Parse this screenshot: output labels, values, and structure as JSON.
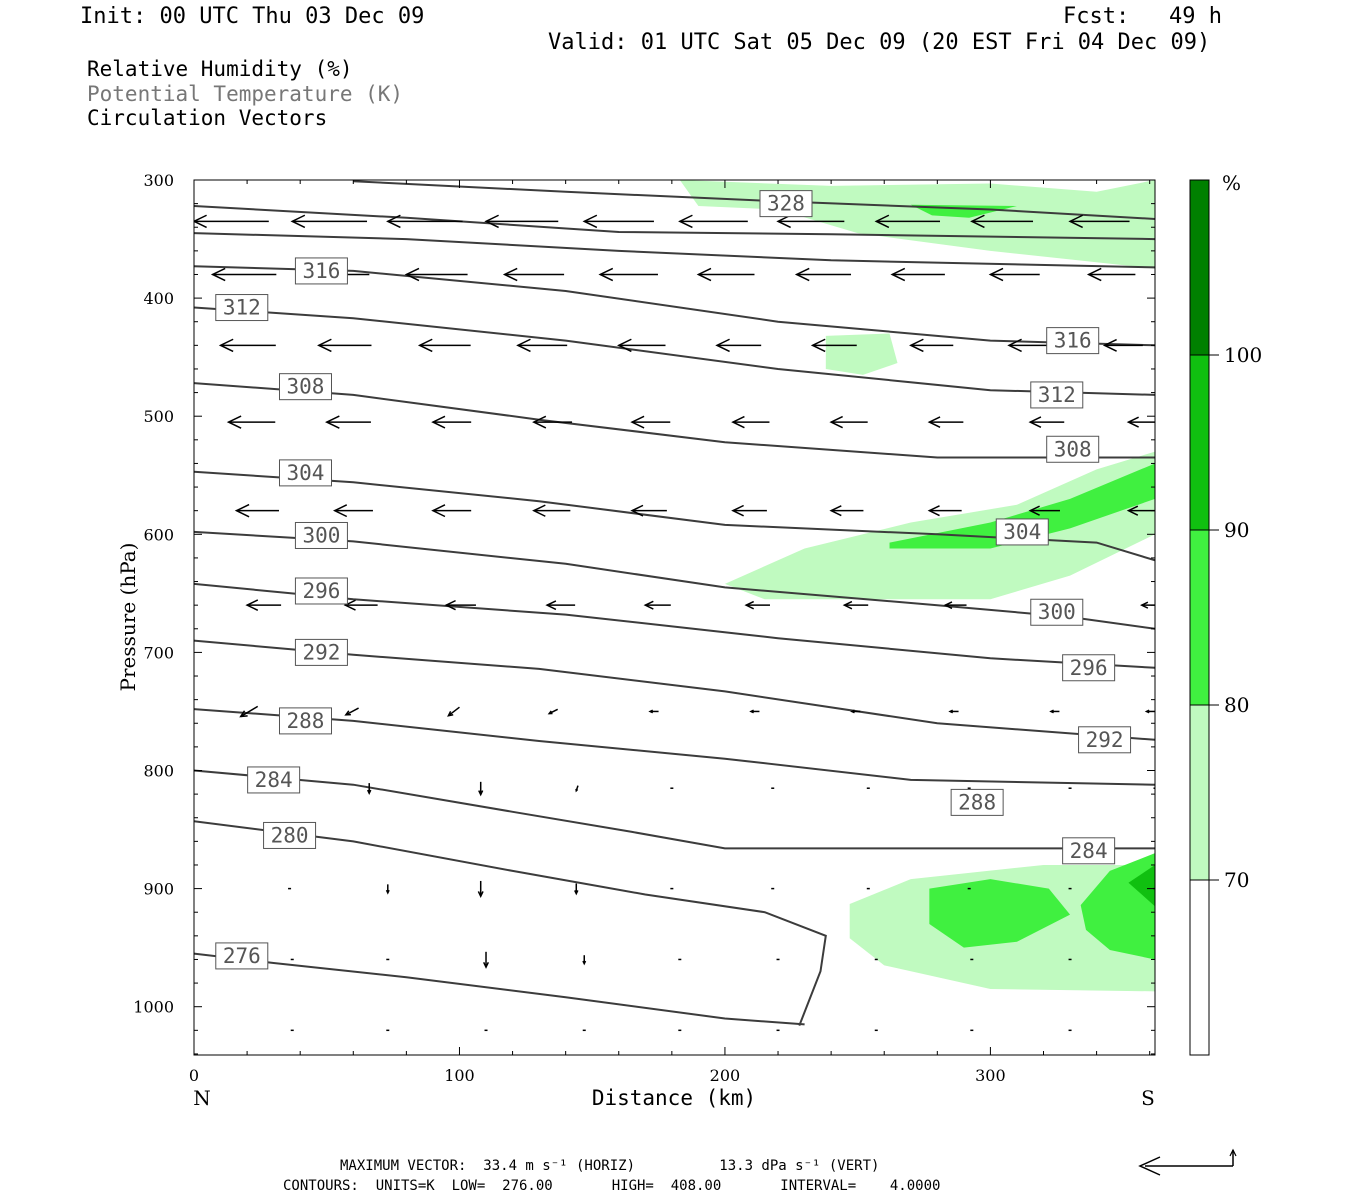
{
  "header": {
    "init": "Init: 00 UTC Thu 03 Dec 09",
    "fcst": "Fcst:   49 h",
    "valid": "Valid: 01 UTC Sat 05 Dec 09 (20 EST Fri 04 Dec 09)",
    "legend_rh": "Relative Humidity (%)",
    "legend_theta": "Potential Temperature (K)",
    "legend_vec": "Circulation Vectors"
  },
  "footer": {
    "max_vector": "MAXIMUM VECTOR:  33.4 m s⁻¹ (HORIZ)          13.3 dPa s⁻¹ (VERT)",
    "contours": "CONTOURS:  UNITS=K  LOW=  276.00       HIGH=  408.00       INTERVAL=    4.0000"
  },
  "colorbar": {
    "unit": "%",
    "levels": [
      70,
      80,
      90,
      100
    ],
    "colors": [
      "#ffffff",
      "#c0fac0",
      "#40f040",
      "#10c010",
      "#008000"
    ]
  },
  "chart_data": {
    "type": "cross-section",
    "xlabel": "Distance (km)",
    "ylabel": "Pressure (hPa)",
    "x_left_label": "N",
    "x_right_label": "S",
    "xlim": [
      0,
      362
    ],
    "ylim": [
      1040,
      300
    ],
    "x_ticks": [
      0,
      100,
      200,
      300
    ],
    "y_ticks": [
      300,
      400,
      500,
      600,
      700,
      800,
      900,
      1000
    ],
    "theta_contours": [
      {
        "level": 276,
        "points": [
          [
            0,
            955
          ],
          [
            30,
            963
          ],
          [
            80,
            975
          ],
          [
            140,
            992
          ],
          [
            200,
            1010
          ],
          [
            230,
            1015
          ]
        ]
      },
      {
        "level": 280,
        "points": [
          [
            0,
            843
          ],
          [
            60,
            860
          ],
          [
            120,
            885
          ],
          [
            170,
            905
          ],
          [
            215,
            920
          ],
          [
            238,
            940
          ],
          [
            236,
            970
          ],
          [
            228,
            1016
          ]
        ]
      },
      {
        "level": 284,
        "points": [
          [
            0,
            800
          ],
          [
            60,
            812
          ],
          [
            120,
            835
          ],
          [
            165,
            852
          ],
          [
            200,
            866
          ],
          [
            260,
            866
          ],
          [
            362,
            866
          ]
        ]
      },
      {
        "level": 288,
        "points": [
          [
            0,
            748
          ],
          [
            60,
            758
          ],
          [
            130,
            775
          ],
          [
            200,
            790
          ],
          [
            270,
            808
          ],
          [
            362,
            812
          ]
        ]
      },
      {
        "level": 292,
        "points": [
          [
            0,
            690
          ],
          [
            60,
            702
          ],
          [
            130,
            714
          ],
          [
            200,
            733
          ],
          [
            280,
            760
          ],
          [
            362,
            774
          ]
        ]
      },
      {
        "level": 296,
        "points": [
          [
            0,
            642
          ],
          [
            60,
            655
          ],
          [
            140,
            668
          ],
          [
            220,
            688
          ],
          [
            300,
            705
          ],
          [
            362,
            713
          ]
        ]
      },
      {
        "level": 300,
        "points": [
          [
            0,
            598
          ],
          [
            60,
            606
          ],
          [
            140,
            625
          ],
          [
            200,
            645
          ],
          [
            280,
            660
          ],
          [
            330,
            670
          ],
          [
            362,
            680
          ]
        ]
      },
      {
        "level": 304,
        "points": [
          [
            0,
            547
          ],
          [
            60,
            556
          ],
          [
            130,
            572
          ],
          [
            200,
            592
          ],
          [
            280,
            600
          ],
          [
            340,
            607
          ],
          [
            362,
            622
          ]
        ]
      },
      {
        "level": 308,
        "points": [
          [
            0,
            472
          ],
          [
            60,
            482
          ],
          [
            130,
            503
          ],
          [
            200,
            522
          ],
          [
            280,
            535
          ],
          [
            362,
            535
          ]
        ]
      },
      {
        "level": 312,
        "points": [
          [
            0,
            408
          ],
          [
            60,
            417
          ],
          [
            140,
            436
          ],
          [
            220,
            460
          ],
          [
            300,
            478
          ],
          [
            362,
            482
          ]
        ]
      },
      {
        "level": 316,
        "points": [
          [
            0,
            373
          ],
          [
            60,
            377
          ],
          [
            140,
            394
          ],
          [
            220,
            420
          ],
          [
            300,
            436
          ],
          [
            362,
            440
          ]
        ]
      },
      {
        "level": 320,
        "points": [
          [
            0,
            345
          ],
          [
            80,
            350
          ],
          [
            160,
            360
          ],
          [
            240,
            368
          ],
          [
            362,
            374
          ]
        ]
      },
      {
        "level": 324,
        "points": [
          [
            0,
            322
          ],
          [
            80,
            332
          ],
          [
            160,
            344
          ],
          [
            240,
            346
          ],
          [
            362,
            350
          ]
        ]
      },
      {
        "level": 328,
        "points": [
          [
            60,
            301
          ],
          [
            140,
            310
          ],
          [
            220,
            318
          ],
          [
            300,
            325
          ],
          [
            362,
            333
          ]
        ]
      }
    ],
    "contour_labels": [
      {
        "level": 328,
        "x": 223,
        "p": 320
      },
      {
        "level": 316,
        "x": 48,
        "p": 377
      },
      {
        "level": 312,
        "x": 18,
        "p": 408
      },
      {
        "level": 316,
        "x": 331,
        "p": 436
      },
      {
        "level": 308,
        "x": 42,
        "p": 475
      },
      {
        "level": 312,
        "x": 325,
        "p": 482
      },
      {
        "level": 308,
        "x": 331,
        "p": 528
      },
      {
        "level": 304,
        "x": 42,
        "p": 548
      },
      {
        "level": 304,
        "x": 312,
        "p": 598
      },
      {
        "level": 300,
        "x": 48,
        "p": 601
      },
      {
        "level": 296,
        "x": 48,
        "p": 648
      },
      {
        "level": 300,
        "x": 325,
        "p": 666
      },
      {
        "level": 292,
        "x": 48,
        "p": 700
      },
      {
        "level": 296,
        "x": 337,
        "p": 713
      },
      {
        "level": 288,
        "x": 42,
        "p": 758
      },
      {
        "level": 292,
        "x": 343,
        "p": 774
      },
      {
        "level": 284,
        "x": 30,
        "p": 808
      },
      {
        "level": 288,
        "x": 295,
        "p": 827
      },
      {
        "level": 280,
        "x": 36,
        "p": 855
      },
      {
        "level": 284,
        "x": 337,
        "p": 868
      },
      {
        "level": 276,
        "x": 18,
        "p": 957
      }
    ],
    "rh_regions": [
      {
        "min": 70,
        "points": [
          [
            183,
            300
          ],
          [
            240,
            305
          ],
          [
            300,
            303
          ],
          [
            340,
            310
          ],
          [
            362,
            300
          ],
          [
            362,
            375
          ],
          [
            300,
            360
          ],
          [
            250,
            345
          ],
          [
            220,
            325
          ],
          [
            190,
            322
          ]
        ]
      },
      {
        "min": 70,
        "points": [
          [
            238,
            432
          ],
          [
            262,
            430
          ],
          [
            265,
            455
          ],
          [
            252,
            465
          ],
          [
            238,
            460
          ]
        ]
      },
      {
        "min": 70,
        "points": [
          [
            200,
            642
          ],
          [
            230,
            612
          ],
          [
            270,
            590
          ],
          [
            310,
            575
          ],
          [
            340,
            545
          ],
          [
            362,
            530
          ],
          [
            362,
            600
          ],
          [
            330,
            635
          ],
          [
            300,
            655
          ],
          [
            260,
            655
          ],
          [
            215,
            655
          ]
        ]
      },
      {
        "min": 70,
        "points": [
          [
            247,
            913
          ],
          [
            270,
            892
          ],
          [
            320,
            880
          ],
          [
            362,
            880
          ],
          [
            362,
            987
          ],
          [
            300,
            985
          ],
          [
            260,
            965
          ],
          [
            247,
            942
          ]
        ]
      },
      {
        "min": 80,
        "points": [
          [
            270,
            321
          ],
          [
            310,
            322
          ],
          [
            292,
            332
          ],
          [
            278,
            330
          ]
        ]
      },
      {
        "min": 80,
        "points": [
          [
            262,
            607
          ],
          [
            300,
            590
          ],
          [
            330,
            570
          ],
          [
            362,
            540
          ],
          [
            362,
            570
          ],
          [
            330,
            595
          ],
          [
            300,
            612
          ],
          [
            262,
            612
          ]
        ]
      },
      {
        "min": 80,
        "points": [
          [
            277,
            900
          ],
          [
            300,
            892
          ],
          [
            322,
            900
          ],
          [
            330,
            922
          ],
          [
            310,
            945
          ],
          [
            290,
            950
          ],
          [
            277,
            930
          ]
        ]
      },
      {
        "min": 80,
        "points": [
          [
            334,
            914
          ],
          [
            345,
            885
          ],
          [
            362,
            870
          ],
          [
            362,
            960
          ],
          [
            345,
            952
          ],
          [
            336,
            935
          ]
        ]
      },
      {
        "min": 90,
        "points": [
          [
            352,
            895
          ],
          [
            362,
            880
          ],
          [
            362,
            915
          ]
        ]
      }
    ],
    "vectors": [
      {
        "p": 335,
        "x": [
          0,
          37,
          73,
          110,
          147,
          183,
          220,
          257,
          293,
          330
        ],
        "u": [
          -8.8,
          -8.8,
          -8.8,
          -8.5,
          -8.2,
          -8.0,
          -7.8,
          -7.5,
          -7.2,
          -7.0
        ],
        "w": [
          0,
          0,
          0,
          0,
          0,
          0,
          0,
          0,
          0,
          0
        ]
      },
      {
        "p": 380,
        "x": [
          7,
          43,
          80,
          117,
          153,
          190,
          227,
          263,
          300,
          337
        ],
        "u": [
          -7.5,
          -7.2,
          -7.2,
          -7.0,
          -6.8,
          -6.6,
          -6.4,
          -6.2,
          -5.8,
          -5.5
        ],
        "w": [
          0,
          0,
          0,
          0,
          0,
          0,
          0,
          0,
          0,
          0
        ]
      },
      {
        "p": 440,
        "x": [
          10,
          47,
          85,
          122,
          160,
          197,
          233,
          270,
          307,
          343
        ],
        "u": [
          -6.5,
          -6.2,
          -6.0,
          -5.8,
          -5.5,
          -5.2,
          -5.2,
          -5.0,
          -4.8,
          -4.5
        ],
        "w": [
          0,
          0,
          0,
          0,
          0,
          0,
          0,
          0,
          0,
          0
        ]
      },
      {
        "p": 505,
        "x": [
          13,
          50,
          90,
          128,
          165,
          203,
          240,
          277,
          315,
          352
        ],
        "u": [
          -5.5,
          -5.2,
          -4.5,
          -4.5,
          -4.5,
          -4.3,
          -4.3,
          -4.0,
          -4.0,
          -3.8
        ],
        "w": [
          0,
          0,
          0,
          0,
          0,
          0,
          0,
          0,
          0,
          0
        ]
      },
      {
        "p": 580,
        "x": [
          16,
          53,
          90,
          128,
          165,
          203,
          240,
          277,
          315,
          352
        ],
        "u": [
          -5.0,
          -4.5,
          -4.5,
          -4.3,
          -4.1,
          -4.0,
          -3.8,
          -3.8,
          -3.5,
          -3.5
        ],
        "w": [
          0,
          0,
          0,
          0,
          0,
          0,
          0,
          0,
          0,
          0
        ]
      },
      {
        "p": 660,
        "x": [
          20,
          57,
          95,
          133,
          170,
          208,
          245,
          283,
          320,
          357
        ],
        "u": [
          -4.0,
          -3.8,
          -3.5,
          -3.3,
          -3.0,
          -2.8,
          -2.8,
          -2.5,
          -2.5,
          -2.3
        ],
        "w": [
          0,
          0,
          0,
          0,
          0,
          0,
          0,
          0,
          0,
          0
        ]
      },
      {
        "p": 750,
        "x": [
          24,
          62,
          100,
          137,
          175,
          213,
          251,
          288,
          326,
          362
        ],
        "u": [
          -2.0,
          -1.5,
          -1.3,
          -1.0,
          -1.0,
          -1.0,
          -1.0,
          -1.0,
          -1.0,
          -1.0
        ],
        "w": [
          1.2,
          0.8,
          1.0,
          0.5,
          0,
          0,
          0,
          0,
          0,
          0
        ],
        "align": "end"
      },
      {
        "p": 815,
        "x": [
          28,
          66,
          108,
          144,
          180,
          218,
          254,
          292,
          330,
          362
        ],
        "u": [
          -0.2,
          0,
          0,
          -0.2,
          0,
          0,
          0,
          0,
          0,
          0
        ],
        "w": [
          0,
          1.2,
          1.5,
          0.6,
          0,
          0,
          0,
          0,
          0,
          0
        ]
      },
      {
        "p": 900,
        "x": [
          36,
          73,
          108,
          144,
          180,
          218,
          254,
          292,
          330,
          362
        ],
        "u": [
          0,
          0,
          0,
          0,
          0,
          0,
          0,
          0,
          0,
          0
        ],
        "w": [
          0,
          1.0,
          1.8,
          1.2,
          0,
          0,
          0,
          0,
          0,
          0
        ]
      },
      {
        "p": 960,
        "x": [
          37,
          73,
          110,
          147,
          183,
          220,
          257,
          293,
          330
        ],
        "u": [
          0,
          0,
          0,
          0,
          0,
          0,
          0,
          0,
          0
        ],
        "w": [
          0,
          0,
          1.8,
          1.0,
          0,
          0,
          0,
          0,
          0
        ]
      },
      {
        "p": 1020,
        "x": [
          37,
          73,
          110,
          147,
          183,
          220,
          257,
          293,
          330
        ],
        "u": [
          0,
          0,
          0,
          0,
          0,
          0,
          0,
          0,
          0
        ],
        "w": [
          0,
          0,
          0,
          0,
          0,
          0,
          0,
          0,
          0
        ]
      }
    ]
  }
}
